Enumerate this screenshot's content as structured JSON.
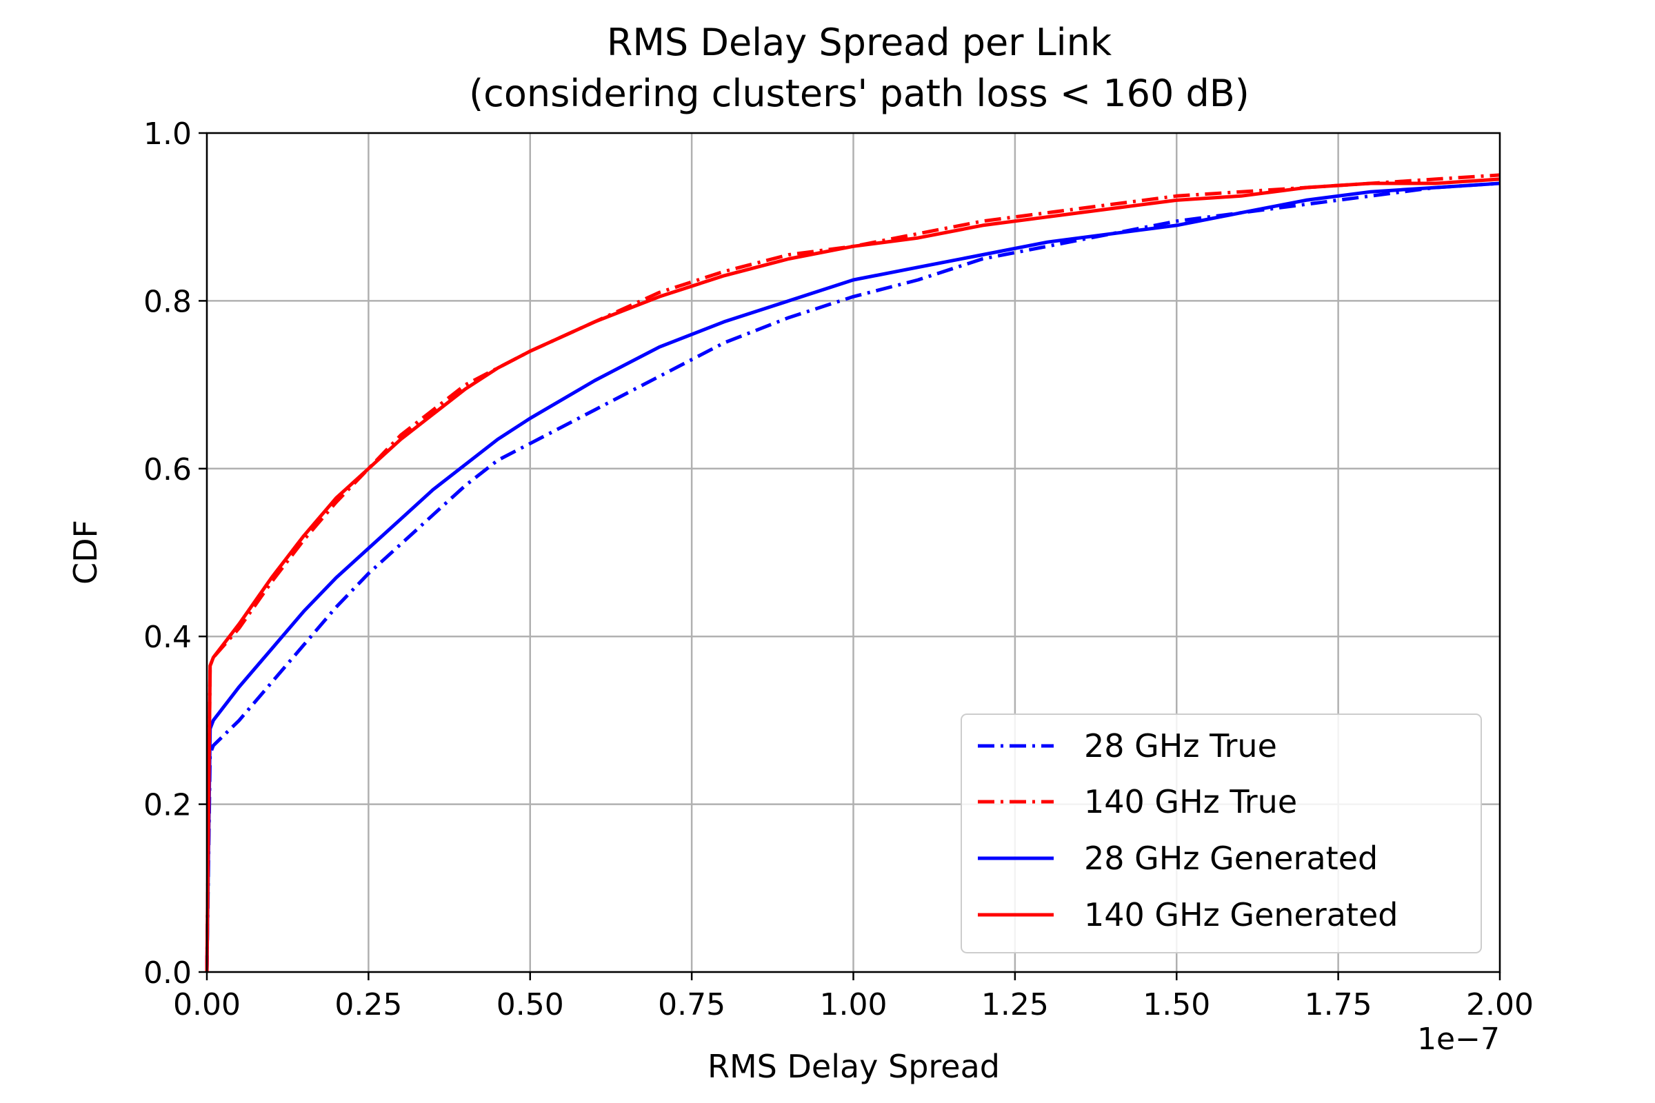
{
  "chart_data": {
    "type": "line",
    "title": [
      "RMS Delay Spread per Link",
      "(considering clusters' path loss < 160 dB)"
    ],
    "xlabel": "RMS Delay Spread",
    "ylabel": "CDF",
    "x_offset_label": "1e−7",
    "xlim": [
      0,
      2.0
    ],
    "ylim": [
      0,
      1.0
    ],
    "xticks": [
      0.0,
      0.25,
      0.5,
      0.75,
      1.0,
      1.25,
      1.5,
      1.75,
      2.0
    ],
    "xtick_labels": [
      "0.00",
      "0.25",
      "0.50",
      "0.75",
      "1.00",
      "1.25",
      "1.50",
      "1.75",
      "2.00"
    ],
    "yticks": [
      0.0,
      0.2,
      0.4,
      0.6,
      0.8,
      1.0
    ],
    "ytick_labels": [
      "0.0",
      "0.2",
      "0.4",
      "0.6",
      "0.8",
      "1.0"
    ],
    "grid": true,
    "legend_position": "lower-right",
    "series": [
      {
        "name": "28 GHz True",
        "color": "#0000ff",
        "style": "dashdot",
        "x": [
          0,
          0.005,
          0.01,
          0.05,
          0.1,
          0.15,
          0.2,
          0.25,
          0.3,
          0.35,
          0.4,
          0.45,
          0.5,
          0.6,
          0.7,
          0.8,
          0.9,
          1.0,
          1.1,
          1.2,
          1.3,
          1.4,
          1.5,
          1.6,
          1.7,
          1.8,
          1.9,
          2.0
        ],
        "y": [
          0.0,
          0.26,
          0.27,
          0.3,
          0.345,
          0.39,
          0.435,
          0.475,
          0.51,
          0.545,
          0.58,
          0.61,
          0.63,
          0.67,
          0.71,
          0.75,
          0.78,
          0.805,
          0.825,
          0.85,
          0.865,
          0.88,
          0.895,
          0.905,
          0.915,
          0.925,
          0.935,
          0.94
        ]
      },
      {
        "name": "140 GHz True",
        "color": "#ff0000",
        "style": "dashdot",
        "x": [
          0,
          0.005,
          0.01,
          0.05,
          0.1,
          0.15,
          0.2,
          0.25,
          0.3,
          0.35,
          0.4,
          0.45,
          0.5,
          0.6,
          0.7,
          0.8,
          0.9,
          1.0,
          1.1,
          1.2,
          1.3,
          1.4,
          1.5,
          1.6,
          1.7,
          1.8,
          1.9,
          2.0
        ],
        "y": [
          0.0,
          0.365,
          0.375,
          0.41,
          0.465,
          0.515,
          0.56,
          0.6,
          0.64,
          0.67,
          0.7,
          0.72,
          0.74,
          0.775,
          0.81,
          0.835,
          0.855,
          0.865,
          0.88,
          0.895,
          0.905,
          0.915,
          0.925,
          0.93,
          0.935,
          0.94,
          0.945,
          0.95
        ]
      },
      {
        "name": "28 GHz Generated",
        "color": "#0000ff",
        "style": "solid",
        "x": [
          0,
          0.005,
          0.01,
          0.05,
          0.1,
          0.15,
          0.2,
          0.25,
          0.3,
          0.35,
          0.4,
          0.45,
          0.5,
          0.6,
          0.7,
          0.8,
          0.9,
          1.0,
          1.1,
          1.2,
          1.3,
          1.4,
          1.5,
          1.6,
          1.7,
          1.8,
          1.9,
          2.0
        ],
        "y": [
          0.0,
          0.29,
          0.3,
          0.34,
          0.385,
          0.43,
          0.47,
          0.505,
          0.54,
          0.575,
          0.605,
          0.635,
          0.66,
          0.705,
          0.745,
          0.775,
          0.8,
          0.825,
          0.84,
          0.855,
          0.87,
          0.88,
          0.89,
          0.905,
          0.92,
          0.93,
          0.935,
          0.94
        ]
      },
      {
        "name": "140 GHz Generated",
        "color": "#ff0000",
        "style": "solid",
        "x": [
          0,
          0.005,
          0.01,
          0.05,
          0.1,
          0.15,
          0.2,
          0.25,
          0.3,
          0.35,
          0.4,
          0.45,
          0.5,
          0.6,
          0.7,
          0.8,
          0.9,
          1.0,
          1.1,
          1.2,
          1.3,
          1.4,
          1.5,
          1.6,
          1.7,
          1.8,
          1.9,
          2.0
        ],
        "y": [
          0.0,
          0.365,
          0.375,
          0.415,
          0.47,
          0.52,
          0.565,
          0.6,
          0.635,
          0.665,
          0.695,
          0.72,
          0.74,
          0.775,
          0.805,
          0.83,
          0.85,
          0.865,
          0.875,
          0.89,
          0.9,
          0.91,
          0.92,
          0.925,
          0.935,
          0.94,
          0.94,
          0.945
        ]
      }
    ]
  }
}
